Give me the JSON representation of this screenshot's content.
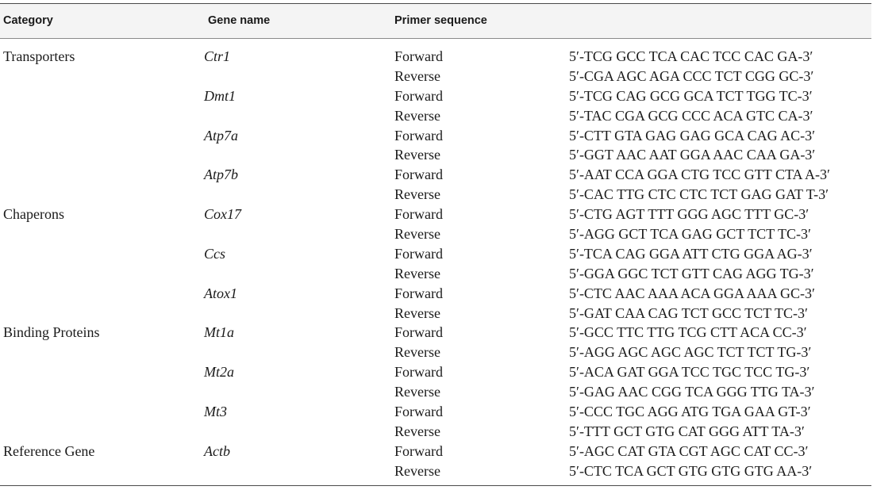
{
  "headers": {
    "category": "Category",
    "gene_name": "Gene name",
    "primer_sequence": "Primer sequence"
  },
  "rows": [
    {
      "category": "Transporters",
      "gene": "Ctr1",
      "direction": "Forward",
      "sequence": "5′-TCG GCC TCA CAC TCC CAC GA-3′"
    },
    {
      "category": "",
      "gene": "",
      "direction": "Reverse",
      "sequence": "5′-CGA AGC AGA CCC TCT CGG GC-3′"
    },
    {
      "category": "",
      "gene": "Dmt1",
      "direction": "Forward",
      "sequence": "5′-TCG CAG GCG GCA TCT TGG TC-3′"
    },
    {
      "category": "",
      "gene": "",
      "direction": "Reverse",
      "sequence": "5′-TAC CGA GCG CCC ACA GTC CA-3′"
    },
    {
      "category": "",
      "gene": "Atp7a",
      "direction": "Forward",
      "sequence": "5′-CTT GTA GAG GAG GCA CAG AC-3′"
    },
    {
      "category": "",
      "gene": "",
      "direction": "Reverse",
      "sequence": "5′-GGT AAC AAT GGA AAC CAA GA-3′"
    },
    {
      "category": "",
      "gene": "Atp7b",
      "direction": "Forward",
      "sequence": "5′-AAT CCA GGA CTG TCC GTT CTA A-3′"
    },
    {
      "category": "",
      "gene": "",
      "direction": "Reverse",
      "sequence": "5′-CAC TTG CTC CTC TCT GAG GAT T-3′"
    },
    {
      "category": "Chaperons",
      "gene": "Cox17",
      "direction": "Forward",
      "sequence": "5′-CTG AGT TTT GGG AGC TTT GC-3′"
    },
    {
      "category": "",
      "gene": "",
      "direction": "Reverse",
      "sequence": "5′-AGG GCT TCA GAG GCT TCT TC-3′"
    },
    {
      "category": "",
      "gene": "Ccs",
      "direction": "Forward",
      "sequence": "5′-TCA CAG GGA ATT CTG GGA AG-3′"
    },
    {
      "category": "",
      "gene": "",
      "direction": "Reverse",
      "sequence": "5′-GGA GGC TCT GTT CAG AGG TG-3′"
    },
    {
      "category": "",
      "gene": "Atox1",
      "direction": "Forward",
      "sequence": "5′-CTC AAC AAA ACA GGA AAA GC-3′"
    },
    {
      "category": "",
      "gene": "",
      "direction": "Reverse",
      "sequence": "5′-GAT CAA CAG TCT GCC TCT TC-3′"
    },
    {
      "category": "Binding Proteins",
      "gene": "Mt1a",
      "direction": "Forward",
      "sequence": "5′-GCC TTC TTG TCG CTT ACA CC-3′"
    },
    {
      "category": "",
      "gene": "",
      "direction": "Reverse",
      "sequence": "5′-AGG AGC AGC AGC TCT TCT TG-3′"
    },
    {
      "category": "",
      "gene": "Mt2a",
      "direction": "Forward",
      "sequence": "5′-ACA GAT GGA TCC TGC TCC TG-3′"
    },
    {
      "category": "",
      "gene": "",
      "direction": "Reverse",
      "sequence": "5′-GAG AAC CGG TCA GGG TTG TA-3′"
    },
    {
      "category": "",
      "gene": "Mt3",
      "direction": "Forward",
      "sequence": "5′-CCC TGC AGG ATG TGA GAA GT-3′"
    },
    {
      "category": "",
      "gene": "",
      "direction": "Reverse",
      "sequence": "5′-TTT GCT GTG CAT GGG ATT TA-3′"
    },
    {
      "category": "Reference Gene",
      "gene": "Actb",
      "direction": "Forward",
      "sequence": "5′-AGC CAT GTA CGT AGC CAT CC-3′"
    },
    {
      "category": "",
      "gene": "",
      "direction": "Reverse",
      "sequence": "5′-CTC TCA GCT GTG GTG GTG AA-3′"
    }
  ]
}
